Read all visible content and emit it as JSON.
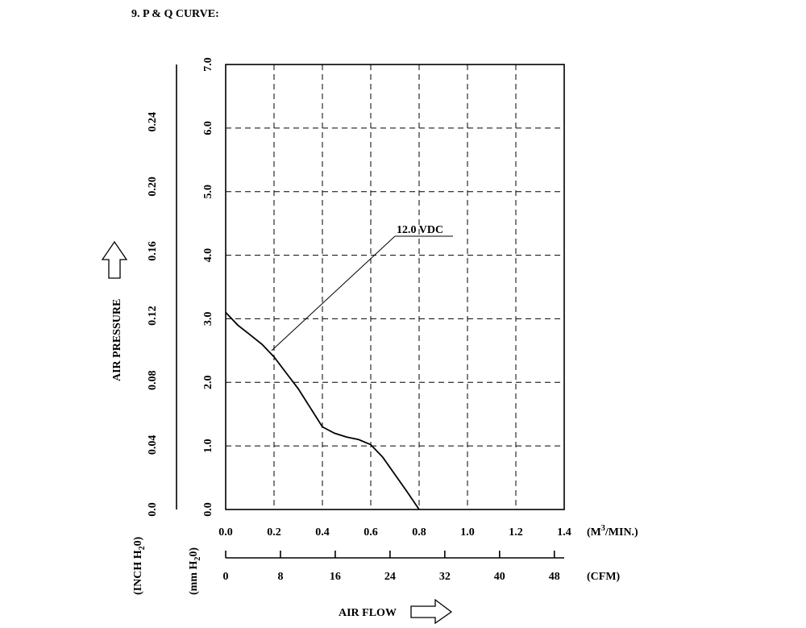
{
  "heading": "9. P & Q CURVE:",
  "chart_data": {
    "type": "line",
    "x_primary": {
      "label_prefix": "(M",
      "label_sup": "3",
      "label_suffix": "/MIN.)",
      "range": [
        0,
        1.4
      ],
      "ticks": [
        "0.0",
        "0.2",
        "0.4",
        "0.6",
        "0.8",
        "1.0",
        "1.2",
        "1.4"
      ]
    },
    "x_secondary": {
      "label": "(CFM)",
      "range": [
        0,
        49.44
      ],
      "ticks": [
        "0",
        "8",
        "16",
        "24",
        "32",
        "40",
        "48"
      ]
    },
    "y_primary": {
      "label_prefix": "(mm H",
      "label_sub": "2",
      "label_suffix": "0)",
      "range": [
        0,
        7.0
      ],
      "ticks": [
        "0.0",
        "1.0",
        "2.0",
        "3.0",
        "4.0",
        "5.0",
        "6.0",
        "7.0"
      ]
    },
    "y_secondary": {
      "label_prefix": "(INCH H",
      "label_sub": "2",
      "label_suffix": "0)",
      "range": [
        0,
        0.2756
      ],
      "ticks": [
        "0.0",
        "0.04",
        "0.08",
        "0.12",
        "0.16",
        "0.20",
        "0.24"
      ]
    },
    "ylabel": "AIR PRESSURE",
    "xlabel": "AIR FLOW",
    "grid": true,
    "series": [
      {
        "name": "12.0 VDC",
        "x": [
          0.0,
          0.05,
          0.1,
          0.15,
          0.2,
          0.25,
          0.3,
          0.35,
          0.4,
          0.45,
          0.5,
          0.55,
          0.6,
          0.65,
          0.7,
          0.75,
          0.8
        ],
        "y": [
          3.1,
          2.9,
          2.75,
          2.6,
          2.4,
          2.15,
          1.9,
          1.6,
          1.3,
          1.2,
          1.14,
          1.1,
          1.02,
          0.82,
          0.55,
          0.28,
          0.0
        ]
      }
    ],
    "annotation": {
      "text": "12.0 VDC",
      "x": 0.19,
      "y": 2.5
    }
  }
}
